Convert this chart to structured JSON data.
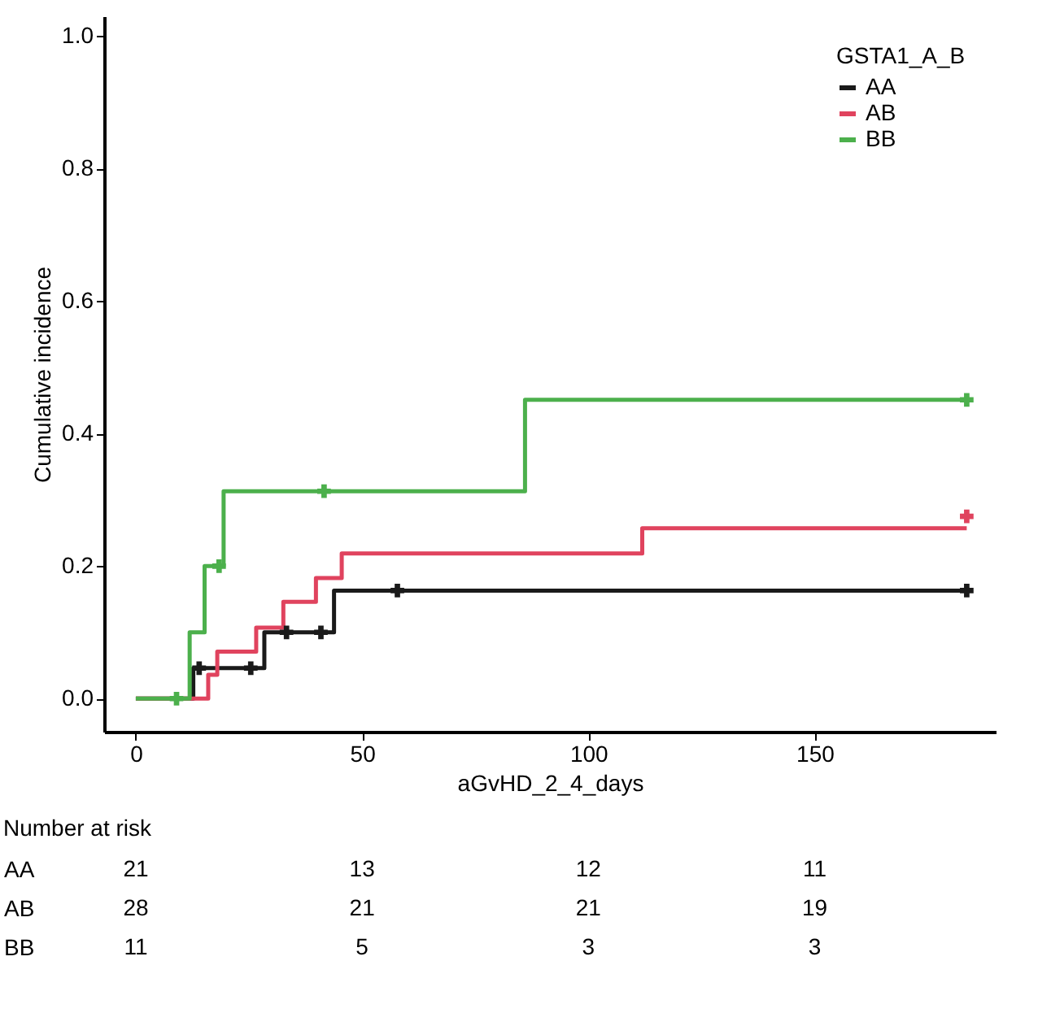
{
  "chart_data": [
    {
      "type": "step",
      "xlabel": "aGvHD_2_4_days",
      "ylabel": "Cumulative incidence",
      "legend_title": "GSTA1_A_B",
      "legend": "top right",
      "grid": false,
      "line_style": "solid",
      "xlim": [
        -7,
        190
      ],
      "xticks": [
        0,
        50,
        100,
        150
      ],
      "ylim": [
        -0.05,
        1.03
      ],
      "yticks": [
        {
          "value": 0,
          "label": "0.0"
        },
        0.2,
        0.4,
        0.6,
        0.8,
        {
          "value": 1,
          "label": "1.0"
        }
      ],
      "series": [
        {
          "name": "AA",
          "color": "#1a1a1a",
          "type": "step",
          "x": [
            0,
            12.7,
            28.4,
            43.8,
            183.6
          ],
          "values": [
            0,
            0.046,
            0.1,
            0.163,
            0.163
          ]
        },
        {
          "name": "AB",
          "color": "#e0435e",
          "type": "step",
          "x": [
            0,
            16,
            18,
            26.6,
            32.6,
            39.8,
            45.5,
            111.9,
            183.6
          ],
          "values": [
            0,
            0.036,
            0.071,
            0.107,
            0.146,
            0.182,
            0.219,
            0.257,
            0.257
          ]
        },
        {
          "name": "BB",
          "color": "#4cb04c",
          "type": "step",
          "x": [
            0,
            11.9,
            15.2,
            19.4,
            86,
            183.6
          ],
          "values": [
            0,
            0.1,
            0.2,
            0.313,
            0.451,
            0.451
          ]
        },
        {
          "color": "#1a1a1a",
          "type": "scatter",
          "marker": "cross",
          "x": [
            14,
            25.4,
            33.3,
            40.9,
            57.8,
            183.6
          ],
          "values": [
            0.046,
            0.046,
            0.1,
            0.1,
            0.163,
            0.163
          ]
        },
        {
          "color": "#e0435e",
          "type": "scatter",
          "marker": "cross",
          "x": [
            183.6
          ],
          "values": [
            0.275
          ]
        },
        {
          "color": "#4cb04c",
          "type": "scatter",
          "marker": "cross",
          "x": [
            9,
            18.4,
            41.6,
            183.6
          ],
          "values": [
            0,
            0.2,
            0.313,
            0.451
          ]
        }
      ]
    },
    {
      "type": "other",
      "title": "Number at risk",
      "y_categories": [
        "AA",
        "AB",
        "BB"
      ],
      "cell_labels": [
        [
          "21",
          "13",
          "12",
          "11"
        ],
        [
          "28",
          "21",
          "21",
          "19"
        ],
        [
          "11",
          "5",
          "3",
          "3"
        ]
      ]
    }
  ]
}
